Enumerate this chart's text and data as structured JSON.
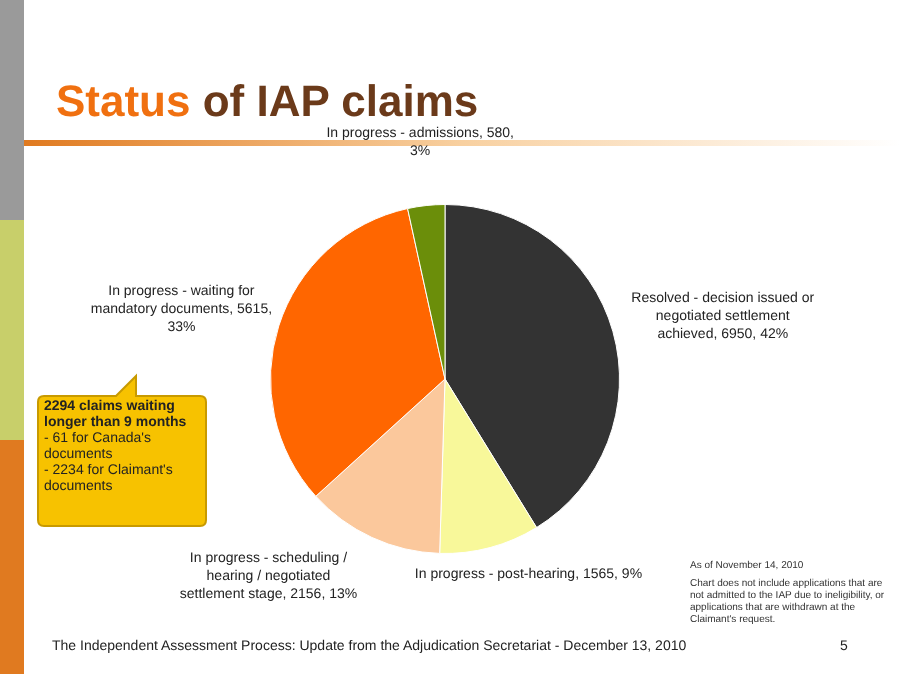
{
  "chart_data": {
    "type": "pie",
    "title": "Status of IAP claims",
    "categories": [
      "Resolved - decision issued or negotiated settlement achieved",
      "In progress - post-hearing",
      "In progress - scheduling / hearing / negotiated settlement stage",
      "In progress - waiting for mandatory documents",
      "In progress - admissions"
    ],
    "values": [
      6950,
      1565,
      2156,
      5615,
      580
    ],
    "value_labels": [
      "6950, 42%",
      "1565, 9%",
      "2156, 13%",
      "5615, 33%",
      "580, 3%"
    ],
    "colors": [
      "#333333",
      "#f8f89a",
      "#fbc89c",
      "#ff6600",
      "#6b8e0a"
    ],
    "legend": false,
    "annotations": [
      "2294 claims waiting longer than 9 months",
      "- 61 for Canada's documents",
      "- 2234 for Claimant's documents",
      "As of November 14, 2010",
      "Chart does not include applications that are not admitted to the IAP due to ineligibility, or applications that are withdrawn at the Claimant's request.",
      "The Independent Assessment Process: Update from the Adjudication Secretariat - December 13, 2010",
      "5"
    ]
  }
}
